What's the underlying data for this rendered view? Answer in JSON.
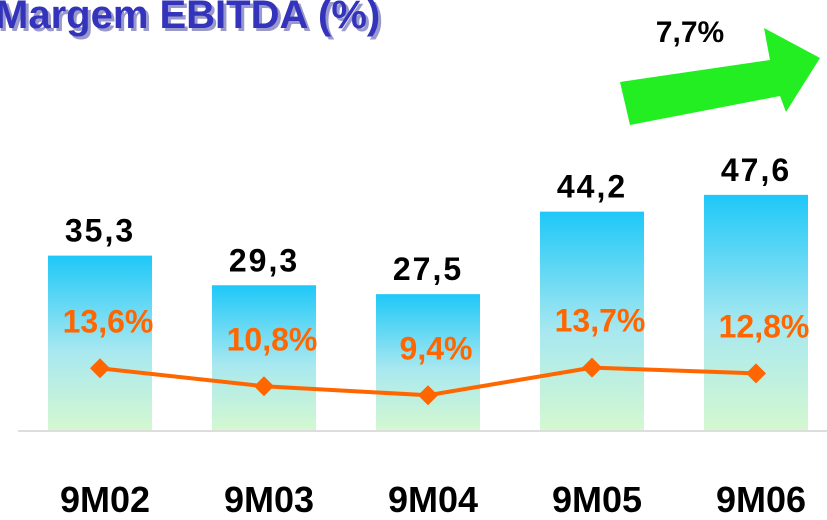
{
  "chart_data": {
    "type": "bar-line",
    "title": "Margem EBITDA (%)",
    "annotation": "7,7%",
    "categories": [
      "9M02",
      "9M03",
      "9M04",
      "9M05",
      "9M06"
    ],
    "series": [
      {
        "type": "bar",
        "color": "#1ec8f8",
        "values": [
          35.3,
          29.3,
          27.5,
          44.2,
          47.6
        ],
        "value_labels": [
          "35,3",
          "29,3",
          "27,5",
          "44,2",
          "47,6"
        ]
      },
      {
        "type": "line",
        "axis": "y2",
        "color": "#ff6600",
        "values": [
          13.6,
          10.8,
          9.4,
          13.7,
          12.8
        ],
        "value_labels": [
          "13,6%",
          "10,8%",
          "9,4%",
          "13,7%",
          "12,8%"
        ]
      }
    ],
    "ylim": [
      0,
      50
    ],
    "y2lim": [
      4,
      42.4
    ]
  }
}
